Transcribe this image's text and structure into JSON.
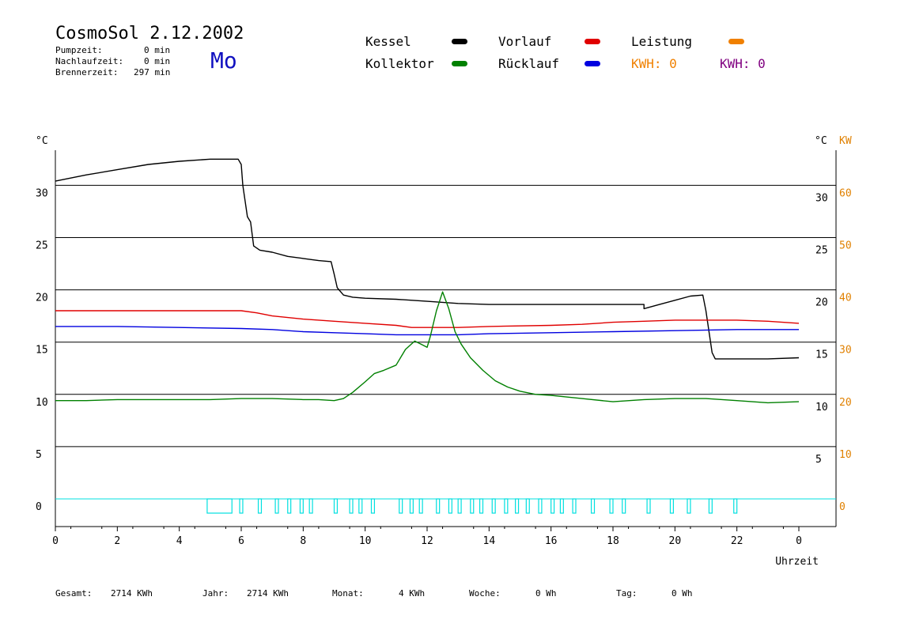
{
  "header": {
    "title": "CosmoSol 2.12.2002",
    "weekday": "Mo",
    "stats": [
      {
        "label": "Pumpzeit:",
        "value": "0 min"
      },
      {
        "label": "Nachlaufzeit:",
        "value": "0 min"
      },
      {
        "label": "Brennerzeit:",
        "value": "297 min"
      }
    ]
  },
  "legend": {
    "items": [
      {
        "label": "Kessel",
        "color": "#000000"
      },
      {
        "label": "Vorlauf",
        "color": "#e00000"
      },
      {
        "label": "Leistung",
        "color": "#f08000"
      },
      {
        "label": "Kollektor",
        "color": "#008000"
      },
      {
        "label": "Rücklauf",
        "color": "#0000e0"
      }
    ],
    "kwh": [
      {
        "label": "KWH: 0",
        "color": "#f08000"
      },
      {
        "label": "KWH: 0",
        "color": "#800080"
      }
    ]
  },
  "footer": [
    {
      "label": "Gesamt:",
      "value": "2714 KWh"
    },
    {
      "label": "Jahr:",
      "value": "2714 KWh"
    },
    {
      "label": "Monat:",
      "value": "4 KWh"
    },
    {
      "label": "Woche:",
      "value": "0 Wh"
    },
    {
      "label": "Tag:",
      "value": "0 Wh"
    }
  ],
  "chart_data": {
    "type": "line",
    "xlabel": "Uhrzeit",
    "ylabel_left": "°C",
    "ylabel_right": "°C",
    "ylabel_right2": "KW",
    "xlim": [
      0,
      24
    ],
    "ylim": [
      -2.5,
      33
    ],
    "x_ticks": [
      "0",
      "2",
      "4",
      "6",
      "8",
      "10",
      "12",
      "14",
      "16",
      "18",
      "20",
      "22",
      "0"
    ],
    "y_ticks_left": [
      0,
      5,
      10,
      15,
      20,
      25,
      30
    ],
    "y_ticks_right": [
      5,
      10,
      15,
      20,
      25,
      30
    ],
    "y_ticks_kw": [
      0,
      10,
      20,
      30,
      40,
      50,
      60
    ],
    "grid": true,
    "series": [
      {
        "name": "Kessel",
        "color": "#000000",
        "x": [
          0,
          1,
          2,
          3,
          4,
          5,
          5.8,
          5.9,
          6.0,
          6.05,
          6.2,
          6.3,
          6.4,
          6.6,
          7.0,
          7.5,
          8.0,
          8.5,
          8.9,
          9.0,
          9.1,
          9.3,
          9.6,
          10.0,
          11.0,
          12.0,
          13.0,
          14.0,
          16.0,
          18.0,
          19.0,
          19.0,
          19.5,
          20.0,
          20.5,
          20.9,
          21.0,
          21.1,
          21.2,
          21.3,
          22.0,
          23.0,
          24.0
        ],
        "y": [
          30.4,
          31.0,
          31.5,
          32.0,
          32.3,
          32.5,
          32.5,
          32.5,
          32.0,
          30.0,
          27.0,
          26.5,
          24.2,
          23.8,
          23.6,
          23.2,
          23.0,
          22.8,
          22.7,
          21.5,
          20.2,
          19.5,
          19.3,
          19.2,
          19.1,
          18.9,
          18.7,
          18.6,
          18.6,
          18.6,
          18.6,
          18.2,
          18.6,
          19.0,
          19.4,
          19.5,
          18.0,
          16.0,
          14.0,
          13.4,
          13.4,
          13.4,
          13.5
        ]
      },
      {
        "name": "Vorlauf",
        "color": "#e00000",
        "x": [
          0,
          2,
          4,
          5,
          6,
          6.5,
          7,
          8,
          9,
          10,
          11,
          11.5,
          12,
          13,
          14,
          16,
          17,
          18,
          19,
          20,
          21,
          22,
          23,
          24
        ],
        "y": [
          18.0,
          18.0,
          18.0,
          18.0,
          18.0,
          17.8,
          17.5,
          17.2,
          17.0,
          16.8,
          16.6,
          16.4,
          16.4,
          16.4,
          16.5,
          16.6,
          16.7,
          16.9,
          17.0,
          17.1,
          17.1,
          17.1,
          17.0,
          16.8
        ]
      },
      {
        "name": "Rücklauf",
        "color": "#0000e0",
        "x": [
          0,
          2,
          4,
          6,
          7,
          8,
          9,
          10,
          11,
          12,
          13,
          14,
          16,
          18,
          20,
          22,
          24
        ],
        "y": [
          16.5,
          16.5,
          16.4,
          16.3,
          16.2,
          16.0,
          15.9,
          15.8,
          15.7,
          15.7,
          15.7,
          15.8,
          15.9,
          16.0,
          16.1,
          16.2,
          16.2
        ]
      },
      {
        "name": "Kollektor",
        "color": "#008000",
        "x": [
          0,
          1,
          2,
          3,
          4,
          5,
          6,
          7,
          8,
          8.5,
          9.0,
          9.3,
          9.6,
          10.0,
          10.3,
          10.6,
          11.0,
          11.3,
          11.6,
          11.8,
          12.0,
          12.1,
          12.3,
          12.5,
          12.7,
          12.9,
          13.1,
          13.4,
          13.8,
          14.2,
          14.6,
          15.0,
          15.5,
          16.0,
          17.0,
          18.0,
          19.0,
          20.0,
          21.0,
          22.0,
          23.0,
          24.0
        ],
        "y": [
          9.4,
          9.4,
          9.5,
          9.5,
          9.5,
          9.5,
          9.6,
          9.6,
          9.5,
          9.5,
          9.4,
          9.6,
          10.2,
          11.2,
          12.0,
          12.3,
          12.8,
          14.3,
          15.1,
          14.8,
          14.5,
          15.5,
          18.0,
          19.8,
          18.2,
          16.0,
          14.8,
          13.5,
          12.3,
          11.3,
          10.7,
          10.3,
          10.0,
          9.9,
          9.6,
          9.3,
          9.5,
          9.6,
          9.6,
          9.4,
          9.2,
          9.3
        ]
      }
    ],
    "pump_pulses": [
      [
        4.9,
        5.7
      ],
      [
        5.95,
        6.05
      ],
      [
        6.55,
        6.65
      ],
      [
        7.1,
        7.2
      ],
      [
        7.5,
        7.6
      ],
      [
        7.9,
        8.0
      ],
      [
        8.2,
        8.3
      ],
      [
        9.0,
        9.1
      ],
      [
        9.5,
        9.6
      ],
      [
        9.8,
        9.9
      ],
      [
        10.2,
        10.3
      ],
      [
        11.1,
        11.2
      ],
      [
        11.45,
        11.55
      ],
      [
        11.75,
        11.85
      ],
      [
        12.3,
        12.4
      ],
      [
        12.7,
        12.8
      ],
      [
        13.0,
        13.1
      ],
      [
        13.4,
        13.5
      ],
      [
        13.7,
        13.8
      ],
      [
        14.1,
        14.2
      ],
      [
        14.5,
        14.6
      ],
      [
        14.85,
        14.95
      ],
      [
        15.2,
        15.3
      ],
      [
        15.6,
        15.7
      ],
      [
        16.0,
        16.1
      ],
      [
        16.3,
        16.4
      ],
      [
        16.7,
        16.8
      ],
      [
        17.3,
        17.4
      ],
      [
        17.9,
        18.0
      ],
      [
        18.3,
        18.4
      ],
      [
        19.1,
        19.2
      ],
      [
        19.85,
        19.95
      ],
      [
        20.4,
        20.5
      ],
      [
        21.1,
        21.2
      ],
      [
        21.9,
        22.0
      ]
    ],
    "pump_color": "#00e0e0"
  }
}
